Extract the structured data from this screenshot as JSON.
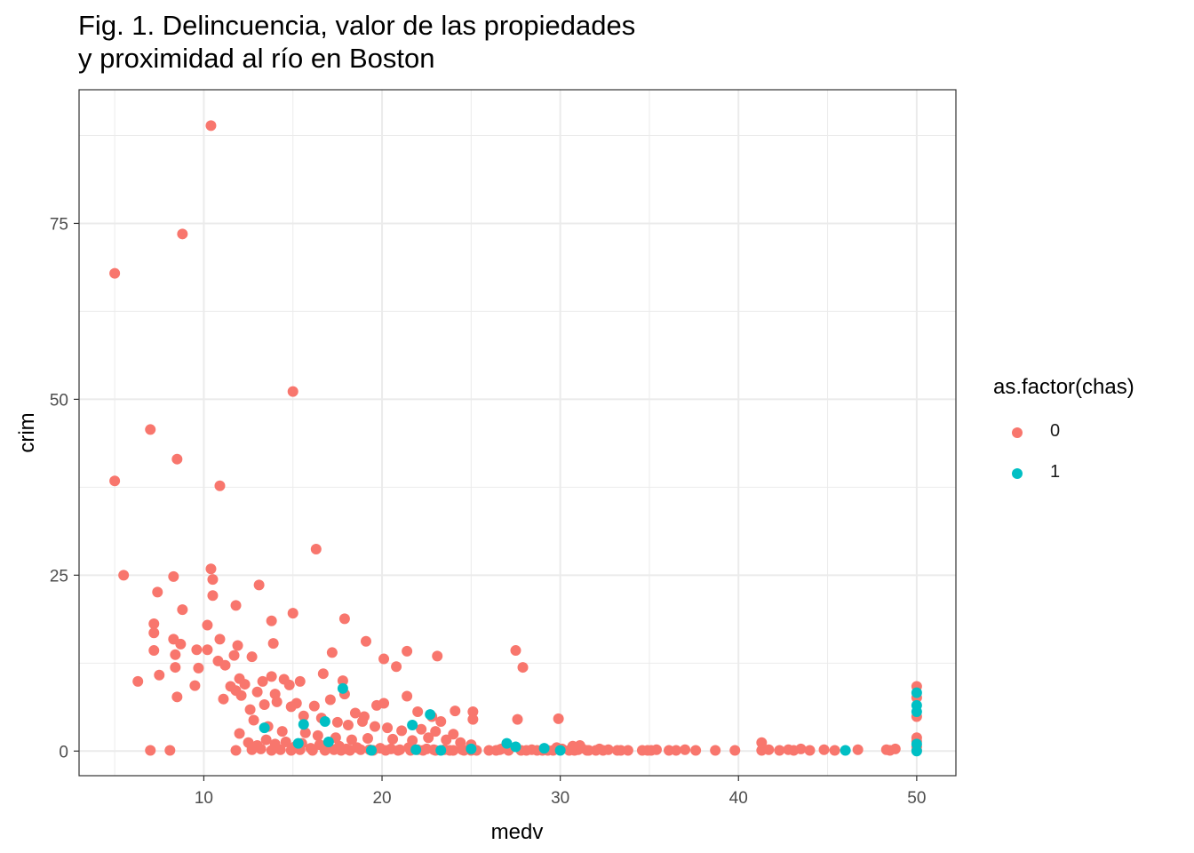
{
  "title_lines": [
    "Fig. 1. Delincuencia, valor de las propiedades",
    "y proximidad al río en Boston"
  ],
  "legend": {
    "title": "as.factor(chas)",
    "items": [
      {
        "label": "0",
        "color": "#F8766D"
      },
      {
        "label": "1",
        "color": "#00BFC4"
      }
    ]
  },
  "chart_data": {
    "type": "scatter",
    "xlabel": "medv",
    "ylabel": "crim",
    "xlim": [
      3,
      52.2
    ],
    "ylim": [
      -3.5,
      94
    ],
    "x_ticks": [
      10,
      20,
      30,
      40,
      50
    ],
    "y_ticks": [
      0,
      25,
      50,
      75
    ],
    "grid": true,
    "legend_position": "right",
    "series": [
      {
        "name": "0",
        "color": "#F8766D",
        "points": [
          [
            10.4,
            88.9
          ],
          [
            8.8,
            73.5
          ],
          [
            5.0,
            67.9
          ],
          [
            15.0,
            51.1
          ],
          [
            7.0,
            45.7
          ],
          [
            8.5,
            41.5
          ],
          [
            5.0,
            38.4
          ],
          [
            10.9,
            37.7
          ],
          [
            16.3,
            28.7
          ],
          [
            10.4,
            25.9
          ],
          [
            5.5,
            25.0
          ],
          [
            8.3,
            24.8
          ],
          [
            10.5,
            24.4
          ],
          [
            13.1,
            23.6
          ],
          [
            7.4,
            22.6
          ],
          [
            10.5,
            22.1
          ],
          [
            11.8,
            20.7
          ],
          [
            8.8,
            20.1
          ],
          [
            15.0,
            19.6
          ],
          [
            17.9,
            18.8
          ],
          [
            13.8,
            18.5
          ],
          [
            7.2,
            18.1
          ],
          [
            10.2,
            17.9
          ],
          [
            7.2,
            16.8
          ],
          [
            8.3,
            15.9
          ],
          [
            10.9,
            15.9
          ],
          [
            19.1,
            15.6
          ],
          [
            8.7,
            15.2
          ],
          [
            13.9,
            15.3
          ],
          [
            11.9,
            15.0
          ],
          [
            7.2,
            14.3
          ],
          [
            9.6,
            14.4
          ],
          [
            10.2,
            14.4
          ],
          [
            17.2,
            14.0
          ],
          [
            21.4,
            14.2
          ],
          [
            27.5,
            14.3
          ],
          [
            8.4,
            13.7
          ],
          [
            11.7,
            13.6
          ],
          [
            12.7,
            13.4
          ],
          [
            23.1,
            13.5
          ],
          [
            10.8,
            12.8
          ],
          [
            20.1,
            13.1
          ],
          [
            9.7,
            11.8
          ],
          [
            8.4,
            11.9
          ],
          [
            27.9,
            11.9
          ],
          [
            20.8,
            12.0
          ],
          [
            7.5,
            10.8
          ],
          [
            11.2,
            12.2
          ],
          [
            6.3,
            9.9
          ],
          [
            9.5,
            9.3
          ],
          [
            11.1,
            7.4
          ],
          [
            8.5,
            7.7
          ],
          [
            11.5,
            9.2
          ],
          [
            12.0,
            10.3
          ],
          [
            13.3,
            9.9
          ],
          [
            13.8,
            10.6
          ],
          [
            14.5,
            10.2
          ],
          [
            15.4,
            9.9
          ],
          [
            16.7,
            11.0
          ],
          [
            17.8,
            10.0
          ],
          [
            11.8,
            8.6
          ],
          [
            12.3,
            9.5
          ],
          [
            13.0,
            8.4
          ],
          [
            14.0,
            8.1
          ],
          [
            14.8,
            9.4
          ],
          [
            15.2,
            6.8
          ],
          [
            16.2,
            6.4
          ],
          [
            17.1,
            7.3
          ],
          [
            17.9,
            8.1
          ],
          [
            18.5,
            5.4
          ],
          [
            19.0,
            4.9
          ],
          [
            19.7,
            6.5
          ],
          [
            20.1,
            6.8
          ],
          [
            21.4,
            7.8
          ],
          [
            22.0,
            5.6
          ],
          [
            22.8,
            4.9
          ],
          [
            23.3,
            4.2
          ],
          [
            24.1,
            5.7
          ],
          [
            25.1,
            5.6
          ],
          [
            25.1,
            4.5
          ],
          [
            27.6,
            4.5
          ],
          [
            29.9,
            4.6
          ],
          [
            12.1,
            7.9
          ],
          [
            12.6,
            5.9
          ],
          [
            13.4,
            6.6
          ],
          [
            14.1,
            7.0
          ],
          [
            14.9,
            6.3
          ],
          [
            15.6,
            5.0
          ],
          [
            16.6,
            4.7
          ],
          [
            17.5,
            4.1
          ],
          [
            18.1,
            3.7
          ],
          [
            18.9,
            4.2
          ],
          [
            19.6,
            3.5
          ],
          [
            20.3,
            3.3
          ],
          [
            21.1,
            2.9
          ],
          [
            22.2,
            3.1
          ],
          [
            23.0,
            2.8
          ],
          [
            24.0,
            2.4
          ],
          [
            12.8,
            4.4
          ],
          [
            13.6,
            3.5
          ],
          [
            14.4,
            2.8
          ],
          [
            15.7,
            2.6
          ],
          [
            16.4,
            2.2
          ],
          [
            17.4,
            1.9
          ],
          [
            18.3,
            1.6
          ],
          [
            19.2,
            1.8
          ],
          [
            20.6,
            1.7
          ],
          [
            21.7,
            1.5
          ],
          [
            22.6,
            1.9
          ],
          [
            23.6,
            1.6
          ],
          [
            24.4,
            1.2
          ],
          [
            25.0,
            0.9
          ],
          [
            12.0,
            2.5
          ],
          [
            12.5,
            1.2
          ],
          [
            13.0,
            0.8
          ],
          [
            13.5,
            1.6
          ],
          [
            14.0,
            1.0
          ],
          [
            14.6,
            1.3
          ],
          [
            15.1,
            0.6
          ],
          [
            15.5,
            1.1
          ],
          [
            16.0,
            0.4
          ],
          [
            16.5,
            0.9
          ],
          [
            17.0,
            0.5
          ],
          [
            17.6,
            0.7
          ],
          [
            18.0,
            0.3
          ],
          [
            18.6,
            0.5
          ],
          [
            19.3,
            0.2
          ],
          [
            19.9,
            0.4
          ],
          [
            20.5,
            0.3
          ],
          [
            21.0,
            0.2
          ],
          [
            21.5,
            0.5
          ],
          [
            22.0,
            0.2
          ],
          [
            22.5,
            0.3
          ],
          [
            23.0,
            0.1
          ],
          [
            23.5,
            0.2
          ],
          [
            24.0,
            0.1
          ],
          [
            24.5,
            0.2
          ],
          [
            25.0,
            0.1
          ],
          [
            26.0,
            0.1
          ],
          [
            26.6,
            0.2
          ],
          [
            27.1,
            0.1
          ],
          [
            27.8,
            0.1
          ],
          [
            28.4,
            0.2
          ],
          [
            29.0,
            0.1
          ],
          [
            29.6,
            0.1
          ],
          [
            30.1,
            0.3
          ],
          [
            30.5,
            0.1
          ],
          [
            31.0,
            0.2
          ],
          [
            31.5,
            0.1
          ],
          [
            32.0,
            0.1
          ],
          [
            32.7,
            0.2
          ],
          [
            33.2,
            0.1
          ],
          [
            33.8,
            0.1
          ],
          [
            34.6,
            0.1
          ],
          [
            35.1,
            0.1
          ],
          [
            35.4,
            0.2
          ],
          [
            36.1,
            0.1
          ],
          [
            36.5,
            0.1
          ],
          [
            37.0,
            0.2
          ],
          [
            37.6,
            0.1
          ],
          [
            38.7,
            0.1
          ],
          [
            39.8,
            0.1
          ],
          [
            41.3,
            0.1
          ],
          [
            41.7,
            0.2
          ],
          [
            42.3,
            0.1
          ],
          [
            42.8,
            0.2
          ],
          [
            43.1,
            0.1
          ],
          [
            43.5,
            0.3
          ],
          [
            44.0,
            0.1
          ],
          [
            44.8,
            0.2
          ],
          [
            45.4,
            0.1
          ],
          [
            46.7,
            0.2
          ],
          [
            48.3,
            0.2
          ],
          [
            48.5,
            0.1
          ],
          [
            48.8,
            0.3
          ],
          [
            12.7,
            0.2
          ],
          [
            13.2,
            0.3
          ],
          [
            13.8,
            0.1
          ],
          [
            14.3,
            0.2
          ],
          [
            14.9,
            0.1
          ],
          [
            15.4,
            0.2
          ],
          [
            16.1,
            0.1
          ],
          [
            16.8,
            0.1
          ],
          [
            17.3,
            0.2
          ],
          [
            17.7,
            0.1
          ],
          [
            18.2,
            0.1
          ],
          [
            18.8,
            0.2
          ],
          [
            19.5,
            0.1
          ],
          [
            20.2,
            0.1
          ],
          [
            20.9,
            0.1
          ],
          [
            21.6,
            0.1
          ],
          [
            22.3,
            0.1
          ],
          [
            22.9,
            0.2
          ],
          [
            23.8,
            0.1
          ],
          [
            24.6,
            0.1
          ],
          [
            25.3,
            0.1
          ],
          [
            26.4,
            0.1
          ],
          [
            28.1,
            0.1
          ],
          [
            28.7,
            0.1
          ],
          [
            29.3,
            0.1
          ],
          [
            30.8,
            0.1
          ],
          [
            31.6,
            0.1
          ],
          [
            32.4,
            0.1
          ],
          [
            33.4,
            0.1
          ],
          [
            34.9,
            0.1
          ],
          [
            26.7,
            0.3
          ],
          [
            29.8,
            0.5
          ],
          [
            30.7,
            0.7
          ],
          [
            31.2,
            0.4
          ],
          [
            32.2,
            0.3
          ],
          [
            31.1,
            0.8
          ],
          [
            41.3,
            1.2
          ],
          [
            11.8,
            0.1
          ],
          [
            7.0,
            0.1
          ],
          [
            8.1,
            0.1
          ],
          [
            50.0,
            9.2
          ],
          [
            50.0,
            7.6
          ],
          [
            50.0,
            4.9
          ],
          [
            50.0,
            1.9
          ],
          [
            50.0,
            1.4
          ],
          [
            50.0,
            0.6
          ],
          [
            50.0,
            0.1
          ]
        ]
      },
      {
        "name": "1",
        "color": "#00BFC4",
        "points": [
          [
            17.8,
            8.9
          ],
          [
            22.7,
            5.2
          ],
          [
            15.6,
            3.8
          ],
          [
            13.4,
            3.3
          ],
          [
            16.8,
            4.2
          ],
          [
            21.7,
            3.7
          ],
          [
            15.3,
            1.1
          ],
          [
            17.0,
            1.3
          ],
          [
            27.0,
            1.1
          ],
          [
            27.5,
            0.6
          ],
          [
            19.4,
            0.1
          ],
          [
            21.9,
            0.2
          ],
          [
            23.3,
            0.1
          ],
          [
            25.0,
            0.3
          ],
          [
            29.1,
            0.4
          ],
          [
            30.0,
            0.1
          ],
          [
            46.0,
            0.1
          ],
          [
            50.0,
            8.3
          ],
          [
            50.0,
            6.5
          ],
          [
            50.0,
            5.6
          ],
          [
            50.0,
            1.0
          ],
          [
            50.0,
            0.0
          ]
        ]
      }
    ]
  }
}
